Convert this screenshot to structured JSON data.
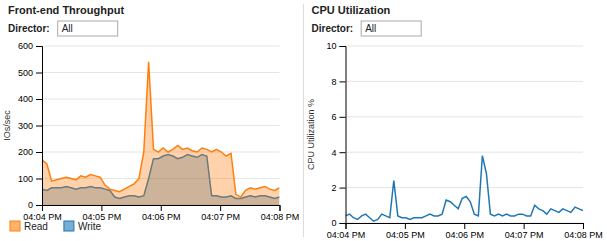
{
  "chart_data": [
    {
      "type": "area",
      "title": "Front-end Throughput",
      "annotations": [
        "Director:",
        "All"
      ],
      "ylabel": "IOs/sec",
      "xlim": [
        0,
        49
      ],
      "xticks": [
        {
          "value": 0,
          "label": "04:04 PM"
        },
        {
          "value": 12.25,
          "label": "04:05 PM"
        },
        {
          "value": 24.5,
          "label": "04:06 PM"
        },
        {
          "value": 36.75,
          "label": "04:07 PM"
        },
        {
          "value": 49,
          "label": "04:08 PM"
        }
      ],
      "ylim": [
        0,
        600
      ],
      "yticks": [
        0,
        100,
        200,
        300,
        400,
        500,
        600
      ],
      "grid": true,
      "legend": "bottom",
      "series": [
        {
          "name": "Write",
          "values": [
            60,
            55,
            65,
            65,
            65,
            70,
            65,
            60,
            65,
            65,
            70,
            65,
            65,
            60,
            55,
            30,
            25,
            30,
            35,
            35,
            30,
            35,
            100,
            175,
            175,
            185,
            190,
            185,
            175,
            180,
            190,
            185,
            180,
            190,
            185,
            35,
            35,
            30,
            30,
            35,
            25,
            25,
            30,
            35,
            30,
            35,
            35,
            30,
            25,
            30
          ]
        },
        {
          "name": "Read",
          "values": [
            170,
            155,
            90,
            95,
            100,
            105,
            100,
            95,
            110,
            105,
            115,
            110,
            105,
            75,
            60,
            55,
            50,
            60,
            70,
            80,
            100,
            200,
            540,
            210,
            200,
            215,
            200,
            210,
            225,
            210,
            215,
            205,
            200,
            215,
            210,
            200,
            210,
            200,
            185,
            195,
            40,
            30,
            55,
            65,
            60,
            65,
            70,
            60,
            55,
            65
          ]
        }
      ]
    },
    {
      "type": "line",
      "title": "CPU Utilization",
      "annotations": [
        "Director:",
        "All"
      ],
      "ylabel": "CPU Utilization %",
      "xlim": [
        0,
        59
      ],
      "xticks": [
        {
          "value": 0,
          "label": "04:04 PM"
        },
        {
          "value": 14.75,
          "label": "04:05 PM"
        },
        {
          "value": 29.5,
          "label": "04:06 PM"
        },
        {
          "value": 44.25,
          "label": "04:07 PM"
        },
        {
          "value": 59,
          "label": "04:08 PM"
        }
      ],
      "ylim": [
        0,
        10
      ],
      "yticks": [
        0,
        2,
        4,
        6,
        8,
        10
      ],
      "grid": true,
      "series": [
        {
          "values": [
            0.4,
            0.5,
            0.3,
            0.2,
            0.4,
            0.5,
            0.3,
            0.1,
            0.2,
            0.5,
            0.4,
            0.3,
            2.4,
            0.4,
            0.3,
            0.3,
            0.2,
            0.3,
            0.3,
            0.3,
            0.4,
            0.5,
            0.4,
            0.4,
            0.5,
            1.3,
            1.2,
            1.0,
            0.8,
            1.4,
            1.5,
            1.2,
            0.5,
            0.4,
            3.8,
            2.8,
            0.5,
            0.4,
            0.5,
            0.4,
            0.5,
            0.4,
            0.4,
            0.5,
            0.5,
            0.4,
            0.4,
            1.0,
            0.8,
            0.7,
            0.5,
            0.8,
            0.7,
            0.6,
            0.8,
            0.7,
            0.6,
            0.9,
            0.8,
            0.7
          ]
        }
      ]
    }
  ]
}
